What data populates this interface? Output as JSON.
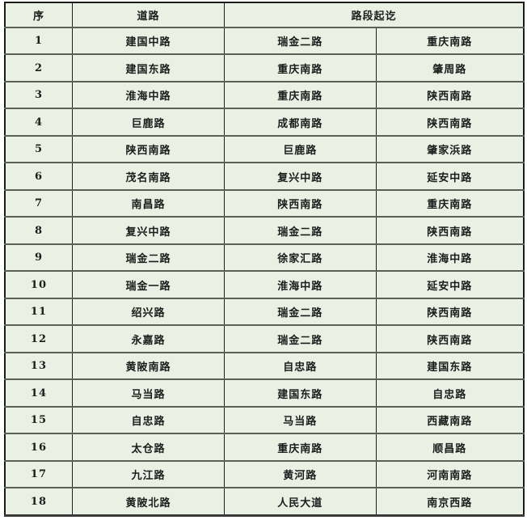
{
  "colors": {
    "cell_background": "#eaf1e4",
    "outer_border": "#1b1b1b",
    "horizontal_rule": "#5c6054",
    "text": "#1c1c1c",
    "page_background": "#ffffff"
  },
  "table": {
    "headers": {
      "no": "序",
      "road": "道路",
      "section": "路段起讫"
    },
    "rows": [
      {
        "no": "1",
        "road": "建国中路",
        "from": "瑞金二路",
        "to": "重庆南路"
      },
      {
        "no": "2",
        "road": "建国东路",
        "from": "重庆南路",
        "to": "肇周路"
      },
      {
        "no": "3",
        "road": "淮海中路",
        "from": "重庆南路",
        "to": "陕西南路"
      },
      {
        "no": "4",
        "road": "巨鹿路",
        "from": "成都南路",
        "to": "陕西南路"
      },
      {
        "no": "5",
        "road": "陕西南路",
        "from": "巨鹿路",
        "to": "肇家浜路"
      },
      {
        "no": "6",
        "road": "茂名南路",
        "from": "复兴中路",
        "to": "延安中路"
      },
      {
        "no": "7",
        "road": "南昌路",
        "from": "陕西南路",
        "to": "重庆南路"
      },
      {
        "no": "8",
        "road": "复兴中路",
        "from": "瑞金二路",
        "to": "陕西南路"
      },
      {
        "no": "9",
        "road": "瑞金二路",
        "from": "徐家汇路",
        "to": "淮海中路"
      },
      {
        "no": "10",
        "road": "瑞金一路",
        "from": "淮海中路",
        "to": "延安中路"
      },
      {
        "no": "11",
        "road": "绍兴路",
        "from": "瑞金二路",
        "to": "陕西南路"
      },
      {
        "no": "12",
        "road": "永嘉路",
        "from": "瑞金二路",
        "to": "陕西南路"
      },
      {
        "no": "13",
        "road": "黄陂南路",
        "from": "自忠路",
        "to": "建国东路"
      },
      {
        "no": "14",
        "road": "马当路",
        "from": "建国东路",
        "to": "自忠路"
      },
      {
        "no": "15",
        "road": "自忠路",
        "from": "马当路",
        "to": "西藏南路"
      },
      {
        "no": "16",
        "road": "太仓路",
        "from": "重庆南路",
        "to": "顺昌路"
      },
      {
        "no": "17",
        "road": "九江路",
        "from": "黄河路",
        "to": "河南南路"
      },
      {
        "no": "18",
        "road": "黄陂北路",
        "from": "人民大道",
        "to": "南京西路"
      }
    ]
  }
}
